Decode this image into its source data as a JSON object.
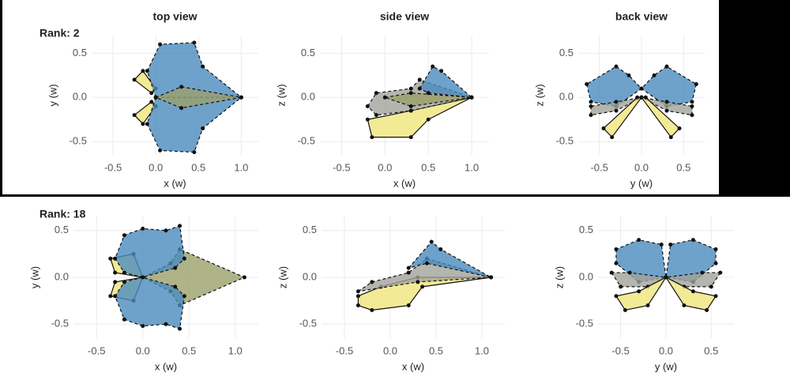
{
  "chart_data": [
    {
      "type": "polygon",
      "title": "top view",
      "annotation": "Rank: 2",
      "xlabel": "x (w)",
      "ylabel": "y (w)",
      "xlim": [
        -0.75,
        1.2
      ],
      "ylim": [
        -0.65,
        0.7
      ],
      "xticks": [
        -0.5,
        {
          "value": 0,
          "label": "0.0"
        },
        0.5,
        {
          "value": 1,
          "label": "1.0"
        }
      ],
      "yticks": [
        0.5,
        {
          "value": 0,
          "label": "0.0"
        },
        -0.5
      ],
      "grid": true,
      "series": [
        {
          "color": "#efe57a",
          "dashed": false,
          "x": [
            -0.05,
            -0.25,
            -0.15,
            0
          ],
          "y": [
            0.05,
            0.2,
            0.3,
            0.1
          ]
        },
        {
          "color": "#efe57a",
          "dashed": false,
          "x": [
            -0.05,
            -0.25,
            -0.15,
            0
          ],
          "y": [
            -0.05,
            -0.2,
            -0.3,
            -0.1
          ]
        },
        {
          "color": "#4a8bbd",
          "dashed": true,
          "x": [
            0,
            -0.1,
            0.05,
            0.45,
            0.55,
            1.0
          ],
          "y": [
            0,
            0.3,
            0.6,
            0.62,
            0.35,
            0
          ]
        },
        {
          "color": "#4a8bbd",
          "dashed": true,
          "x": [
            0,
            -0.1,
            0.05,
            0.45,
            0.55,
            1.0
          ],
          "y": [
            0,
            -0.3,
            -0.6,
            -0.62,
            -0.35,
            0
          ]
        },
        {
          "color": "#9aa06a",
          "dashed": true,
          "x": [
            0,
            0.3,
            1.0,
            0.3
          ],
          "y": [
            0,
            0.12,
            0,
            -0.12
          ]
        }
      ]
    },
    {
      "type": "polygon",
      "title": "side view",
      "xlabel": "x (w)",
      "ylabel": "z (w)",
      "xlim": [
        -0.75,
        1.2
      ],
      "ylim": [
        -0.65,
        0.7
      ],
      "xticks": [
        -0.5,
        {
          "value": 0,
          "label": "0.0"
        },
        0.5,
        {
          "value": 1,
          "label": "1.0"
        }
      ],
      "yticks": [
        0.5,
        {
          "value": 0,
          "label": "0.0"
        },
        -0.5
      ],
      "grid": true,
      "series": [
        {
          "color": "#efe57a",
          "dashed": false,
          "x": [
            -0.2,
            -0.15,
            0.3,
            0.5,
            1.0,
            0.3
          ],
          "y": [
            -0.25,
            -0.45,
            -0.45,
            -0.25,
            0,
            -0.15
          ]
        },
        {
          "color": "#a0a39a",
          "dashed": true,
          "x": [
            -0.2,
            -0.1,
            0.3,
            0.4,
            1.0,
            0.3,
            -0.1
          ],
          "y": [
            -0.1,
            0.05,
            0.1,
            0.2,
            0,
            -0.15,
            -0.2
          ]
        },
        {
          "color": "#9aa06a",
          "dashed": true,
          "x": [
            0,
            0.3,
            1.0,
            0.3
          ],
          "y": [
            0,
            0.05,
            0,
            -0.1
          ]
        },
        {
          "color": "#4a8bbd",
          "dashed": true,
          "x": [
            0.4,
            0.55,
            0.65,
            1.0,
            0.5
          ],
          "y": [
            0.1,
            0.35,
            0.3,
            0,
            0.05
          ]
        }
      ]
    },
    {
      "type": "polygon",
      "title": "back view",
      "xlabel": "y (w)",
      "ylabel": "z (w)",
      "xlim": [
        -0.75,
        0.75
      ],
      "ylim": [
        -0.65,
        0.7
      ],
      "xticks": [
        -0.5,
        {
          "value": 0,
          "label": "0.0"
        },
        0.5
      ],
      "yticks": [
        0.5,
        {
          "value": 0,
          "label": "0.0"
        },
        -0.5
      ],
      "grid": true,
      "series": [
        {
          "color": "#4a8bbd",
          "dashed": true,
          "x": [
            -0.65,
            -0.6,
            -0.3,
            0,
            -0.15,
            -0.3
          ],
          "y": [
            0.15,
            -0.05,
            -0.1,
            0.1,
            0.25,
            0.35
          ]
        },
        {
          "color": "#4a8bbd",
          "dashed": true,
          "x": [
            0.65,
            0.6,
            0.3,
            0,
            0.15,
            0.3
          ],
          "y": [
            0.15,
            -0.05,
            -0.1,
            0.1,
            0.25,
            0.35
          ]
        },
        {
          "color": "#a0a39a",
          "dashed": true,
          "x": [
            -0.6,
            -0.6,
            -0.3,
            0,
            -0.3
          ],
          "y": [
            -0.1,
            -0.2,
            -0.15,
            0,
            -0.05
          ]
        },
        {
          "color": "#a0a39a",
          "dashed": true,
          "x": [
            0.6,
            0.6,
            0.3,
            0,
            0.3
          ],
          "y": [
            -0.1,
            -0.2,
            -0.15,
            0,
            -0.05
          ]
        },
        {
          "color": "#efe57a",
          "dashed": false,
          "x": [
            -0.45,
            -0.35,
            0,
            -0.05
          ],
          "y": [
            -0.35,
            -0.45,
            0,
            0
          ]
        },
        {
          "color": "#efe57a",
          "dashed": false,
          "x": [
            0.45,
            0.35,
            0,
            0.05
          ],
          "y": [
            -0.35,
            -0.45,
            0,
            0
          ]
        }
      ]
    },
    {
      "type": "polygon",
      "annotation": "Rank: 18",
      "xlabel": "x (w)",
      "ylabel": "y (w)",
      "xlim": [
        -0.75,
        1.25
      ],
      "ylim": [
        -0.65,
        0.65
      ],
      "xticks": [
        -0.5,
        {
          "value": 0,
          "label": "0.0"
        },
        0.5,
        {
          "value": 1,
          "label": "1.0"
        }
      ],
      "yticks": [
        0.5,
        {
          "value": 0,
          "label": "0.0"
        },
        -0.5
      ],
      "grid": true,
      "series": [
        {
          "color": "#efe57a",
          "dashed": false,
          "x": [
            -0.35,
            -0.3,
            0,
            -0.1
          ],
          "y": [
            0.2,
            0.05,
            0,
            0.25
          ]
        },
        {
          "color": "#efe57a",
          "dashed": false,
          "x": [
            -0.35,
            -0.3,
            0,
            -0.1
          ],
          "y": [
            -0.2,
            -0.05,
            0,
            -0.25
          ]
        },
        {
          "color": "#9aa06a",
          "dashed": true,
          "x": [
            0,
            0.3,
            0.4,
            1.1,
            0.4,
            0.3
          ],
          "y": [
            0,
            0.15,
            0.3,
            0,
            -0.3,
            -0.15
          ]
        },
        {
          "color": "#4a8bbd",
          "dashed": true,
          "x": [
            0,
            -0.2,
            -0.3,
            -0.2,
            0,
            0.25,
            0.4,
            0.45,
            0.35
          ],
          "y": [
            0,
            0.05,
            0.2,
            0.45,
            0.52,
            0.5,
            0.55,
            0.2,
            0.1
          ]
        },
        {
          "color": "#4a8bbd",
          "dashed": true,
          "x": [
            0,
            -0.2,
            -0.3,
            -0.2,
            0,
            0.25,
            0.4,
            0.45,
            0.35
          ],
          "y": [
            0,
            -0.05,
            -0.2,
            -0.45,
            -0.52,
            -0.5,
            -0.55,
            -0.2,
            -0.1
          ]
        }
      ]
    },
    {
      "type": "polygon",
      "xlabel": "x (w)",
      "ylabel": "z (w)",
      "xlim": [
        -0.75,
        1.25
      ],
      "ylim": [
        -0.65,
        0.65
      ],
      "xticks": [
        -0.5,
        {
          "value": 0,
          "label": "0.0"
        },
        0.5,
        {
          "value": 1,
          "label": "1.0"
        }
      ],
      "yticks": [
        0.5,
        {
          "value": 0,
          "label": "0.0"
        },
        -0.5
      ],
      "grid": true,
      "series": [
        {
          "color": "#efe57a",
          "dashed": false,
          "x": [
            -0.35,
            -0.35,
            -0.2,
            0.2,
            0.35,
            1.1,
            0.3,
            -0.1
          ],
          "y": [
            -0.2,
            -0.3,
            -0.35,
            -0.3,
            -0.1,
            0,
            0,
            -0.1
          ]
        },
        {
          "color": "#a0a39a",
          "dashed": true,
          "x": [
            -0.35,
            -0.2,
            0.2,
            0.4,
            1.1,
            0.3
          ],
          "y": [
            -0.15,
            -0.05,
            0.05,
            0.2,
            0,
            -0.05
          ]
        },
        {
          "color": "#4a8bbd",
          "dashed": true,
          "x": [
            0.2,
            0.45,
            0.55,
            1.1,
            0.4
          ],
          "y": [
            0.1,
            0.38,
            0.3,
            0,
            0.15
          ]
        }
      ]
    },
    {
      "type": "polygon",
      "xlabel": "y (w)",
      "ylabel": "z (w)",
      "xlim": [
        -0.75,
        0.75
      ],
      "ylim": [
        -0.65,
        0.65
      ],
      "xticks": [
        -0.5,
        {
          "value": 0,
          "label": "0.0"
        },
        0.5
      ],
      "yticks": [
        0.5,
        {
          "value": 0,
          "label": "0.0"
        },
        -0.5
      ],
      "grid": true,
      "series": [
        {
          "color": "#4a8bbd",
          "dashed": true,
          "x": [
            -0.55,
            -0.55,
            -0.3,
            0,
            -0.05,
            -0.3
          ],
          "y": [
            0.3,
            0.15,
            -0.05,
            0,
            0.35,
            0.4
          ]
        },
        {
          "color": "#4a8bbd",
          "dashed": true,
          "x": [
            0.55,
            0.55,
            0.3,
            0,
            0.05,
            0.3
          ],
          "y": [
            0.3,
            0.15,
            -0.05,
            0,
            0.35,
            0.4
          ]
        },
        {
          "color": "#a0a39a",
          "dashed": true,
          "x": [
            -0.6,
            -0.5,
            -0.2,
            0,
            -0.4
          ],
          "y": [
            0.05,
            -0.1,
            -0.1,
            0,
            0.05
          ]
        },
        {
          "color": "#a0a39a",
          "dashed": true,
          "x": [
            0.6,
            0.5,
            0.2,
            0,
            0.4
          ],
          "y": [
            0.05,
            -0.1,
            -0.1,
            0,
            0.05
          ]
        },
        {
          "color": "#efe57a",
          "dashed": false,
          "x": [
            -0.55,
            -0.45,
            -0.2,
            0,
            -0.3
          ],
          "y": [
            -0.2,
            -0.35,
            -0.3,
            0,
            -0.15
          ]
        },
        {
          "color": "#efe57a",
          "dashed": false,
          "x": [
            0.55,
            0.45,
            0.2,
            0,
            0.3
          ],
          "y": [
            -0.2,
            -0.35,
            -0.3,
            0,
            -0.15
          ]
        }
      ]
    }
  ]
}
